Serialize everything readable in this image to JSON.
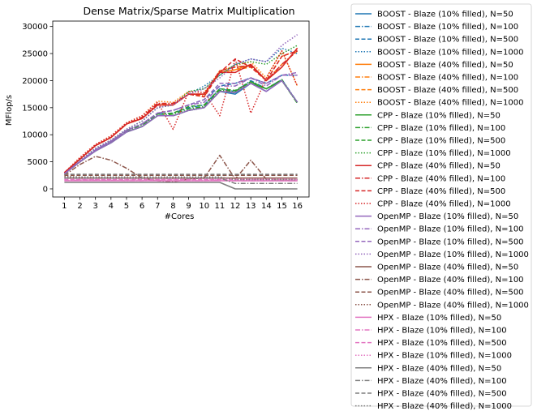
{
  "chart_data": {
    "type": "line",
    "title": "Dense Matrix/Sparse Matrix Multiplication",
    "xlabel": "#Cores",
    "ylabel": "MFlop/s",
    "x": [
      1,
      2,
      3,
      4,
      5,
      6,
      7,
      8,
      9,
      10,
      11,
      12,
      13,
      14,
      15,
      16
    ],
    "xlim": [
      0.25,
      16.75
    ],
    "ylim": [
      -1500,
      31000
    ],
    "yticks": [
      0,
      5000,
      10000,
      15000,
      20000,
      25000,
      30000
    ],
    "grid": false,
    "legend_position": "outside-right",
    "series": [
      {
        "name": "BOOST - Blaze (10% filled), N=50",
        "color": "#1f77b4",
        "dash": "solid",
        "values": [
          3000,
          5000,
          7000,
          8500,
          10500,
          11500,
          13500,
          13500,
          14500,
          15000,
          18000,
          17500,
          19500,
          18000,
          20000,
          16000
        ]
      },
      {
        "name": "BOOST - Blaze (10% filled), N=100",
        "color": "#1f77b4",
        "dash": "dashdot",
        "values": [
          2800,
          5000,
          7200,
          8800,
          10800,
          12000,
          13800,
          14000,
          15000,
          15500,
          18500,
          18000,
          20000,
          18500,
          20200,
          16000
        ]
      },
      {
        "name": "BOOST - Blaze (10% filled), N=500",
        "color": "#1f77b4",
        "dash": "dashed",
        "values": [
          2800,
          5000,
          7200,
          8800,
          10800,
          12000,
          14000,
          14500,
          15500,
          16500,
          19000,
          19500,
          20500,
          19500,
          21000,
          21000
        ]
      },
      {
        "name": "BOOST - Blaze (10% filled), N=1000",
        "color": "#1f77b4",
        "dash": "dotted",
        "values": [
          2800,
          5200,
          7500,
          9000,
          11000,
          12500,
          15000,
          15500,
          17500,
          19000,
          21000,
          23000,
          24000,
          23500,
          26000,
          25000
        ]
      },
      {
        "name": "BOOST - Blaze (40% filled), N=50",
        "color": "#ff7f0e",
        "dash": "solid",
        "values": [
          3000,
          5500,
          8000,
          9500,
          12000,
          13000,
          15500,
          15500,
          17500,
          17500,
          21500,
          22000,
          23000,
          20000,
          22500,
          26000
        ]
      },
      {
        "name": "BOOST - Blaze (40% filled), N=100",
        "color": "#ff7f0e",
        "dash": "dashdot",
        "values": [
          3000,
          5500,
          8000,
          9500,
          12000,
          13200,
          15800,
          15500,
          17500,
          17200,
          21800,
          22500,
          22800,
          20000,
          23000,
          25500
        ]
      },
      {
        "name": "BOOST - Blaze (40% filled), N=500",
        "color": "#ff7f0e",
        "dash": "dashed",
        "values": [
          3000,
          5500,
          8000,
          9500,
          12000,
          13000,
          15500,
          15500,
          17500,
          17000,
          21500,
          22000,
          22500,
          20000,
          24500,
          25500
        ]
      },
      {
        "name": "BOOST - Blaze (40% filled), N=1000",
        "color": "#ff7f0e",
        "dash": "dotted",
        "values": [
          3000,
          5800,
          8200,
          9800,
          12200,
          13500,
          16200,
          16000,
          18000,
          17800,
          21800,
          22800,
          23500,
          20500,
          25500,
          19000
        ]
      },
      {
        "name": "CPP - Blaze (10% filled), N=50",
        "color": "#2ca02c",
        "dash": "solid",
        "values": [
          2800,
          5000,
          7000,
          8500,
          10500,
          11500,
          13500,
          13500,
          14500,
          15000,
          18000,
          17800,
          19500,
          18500,
          20000,
          16000
        ]
      },
      {
        "name": "CPP - Blaze (10% filled), N=100",
        "color": "#2ca02c",
        "dash": "dashdot",
        "values": [
          2800,
          5000,
          7000,
          8700,
          10700,
          11800,
          13500,
          13800,
          14800,
          15200,
          18200,
          18000,
          19800,
          18500,
          20000,
          15800
        ]
      },
      {
        "name": "CPP - Blaze (10% filled), N=500",
        "color": "#2ca02c",
        "dash": "dashed",
        "values": [
          2800,
          5000,
          7200,
          8800,
          10800,
          12000,
          13800,
          14000,
          15200,
          15500,
          18500,
          18200,
          19800,
          18500,
          20200,
          15800
        ]
      },
      {
        "name": "CPP - Blaze (10% filled), N=1000",
        "color": "#2ca02c",
        "dash": "dotted",
        "values": [
          2800,
          5200,
          7500,
          9000,
          11000,
          12500,
          15000,
          15500,
          18000,
          18500,
          21000,
          23000,
          23500,
          23000,
          25000,
          26500
        ]
      },
      {
        "name": "CPP - Blaze (40% filled), N=50",
        "color": "#d62728",
        "dash": "solid",
        "values": [
          3000,
          5500,
          8000,
          9500,
          12000,
          13000,
          15500,
          15500,
          17500,
          17500,
          21500,
          21500,
          23000,
          20000,
          22500,
          26000
        ]
      },
      {
        "name": "CPP - Blaze (40% filled), N=100",
        "color": "#d62728",
        "dash": "dashdot",
        "values": [
          3000,
          5500,
          8000,
          9500,
          12000,
          13200,
          15800,
          15800,
          17500,
          17500,
          21800,
          22500,
          22800,
          20000,
          23000,
          25500
        ]
      },
      {
        "name": "CPP - Blaze (40% filled), N=500",
        "color": "#d62728",
        "dash": "dashed",
        "values": [
          3000,
          5500,
          8000,
          9500,
          12000,
          13000,
          15500,
          15500,
          17500,
          17000,
          21500,
          24000,
          22500,
          20000,
          24500,
          25500
        ]
      },
      {
        "name": "CPP - Blaze (40% filled), N=1000",
        "color": "#d62728",
        "dash": "dotted",
        "values": [
          3000,
          5800,
          8200,
          9800,
          12200,
          13500,
          16000,
          11000,
          18000,
          17800,
          13500,
          24000,
          14000,
          20500,
          25500,
          19000
        ]
      },
      {
        "name": "OpenMP - Blaze (10% filled), N=50",
        "color": "#9467bd",
        "dash": "solid",
        "values": [
          2800,
          5000,
          7000,
          8500,
          10500,
          11500,
          13500,
          13500,
          14500,
          15000,
          18000,
          17800,
          19500,
          18000,
          20000,
          16000
        ]
      },
      {
        "name": "OpenMP - Blaze (10% filled), N=100",
        "color": "#9467bd",
        "dash": "dashdot",
        "values": [
          2800,
          5000,
          7200,
          8800,
          10800,
          12000,
          14000,
          14500,
          15500,
          16000,
          19000,
          19000,
          20500,
          19000,
          21000,
          21500
        ]
      },
      {
        "name": "OpenMP - Blaze (10% filled), N=500",
        "color": "#9467bd",
        "dash": "dashed",
        "values": [
          2800,
          5000,
          7200,
          8800,
          10800,
          12000,
          14000,
          14500,
          15500,
          16500,
          19500,
          19500,
          20500,
          19500,
          21000,
          21000
        ]
      },
      {
        "name": "OpenMP - Blaze (10% filled), N=1000",
        "color": "#9467bd",
        "dash": "dotted",
        "values": [
          2800,
          5200,
          7500,
          9000,
          11000,
          12500,
          15000,
          15500,
          17500,
          18500,
          20500,
          23000,
          24000,
          23500,
          26500,
          28500
        ]
      },
      {
        "name": "OpenMP - Blaze (40% filled), N=50",
        "color": "#8c564b",
        "dash": "solid",
        "values": [
          2000,
          2000,
          2000,
          2000,
          2000,
          2000,
          2000,
          2000,
          2000,
          2000,
          2000,
          2000,
          2000,
          2000,
          2000,
          2000
        ]
      },
      {
        "name": "OpenMP - Blaze (40% filled), N=100",
        "color": "#8c564b",
        "dash": "dashdot",
        "values": [
          2500,
          4500,
          6000,
          5300,
          3800,
          2000,
          1500,
          1300,
          1800,
          2000,
          6200,
          1800,
          5300,
          1800,
          1600,
          1500
        ]
      },
      {
        "name": "OpenMP - Blaze (40% filled), N=500",
        "color": "#8c564b",
        "dash": "dashed",
        "values": [
          2500,
          2500,
          2500,
          2500,
          2500,
          2500,
          2500,
          2500,
          2500,
          2500,
          2500,
          2500,
          2500,
          2500,
          2500,
          2500
        ]
      },
      {
        "name": "OpenMP - Blaze (40% filled), N=1000",
        "color": "#8c564b",
        "dash": "dotted",
        "values": [
          2300,
          2200,
          2100,
          2000,
          2000,
          1800,
          1900,
          1900,
          1900,
          1900,
          2000,
          1900,
          2000,
          1800,
          1800,
          1700
        ]
      },
      {
        "name": "HPX - Blaze (10% filled), N=50",
        "color": "#e377c2",
        "dash": "solid",
        "values": [
          1500,
          1500,
          1500,
          1500,
          1500,
          1500,
          1500,
          1500,
          1500,
          1500,
          1500,
          1500,
          1500,
          1500,
          1500,
          1500
        ]
      },
      {
        "name": "HPX - Blaze (10% filled), N=100",
        "color": "#e377c2",
        "dash": "dashdot",
        "values": [
          1500,
          1600,
          1600,
          1600,
          1500,
          1500,
          1600,
          1500,
          1500,
          1500,
          1600,
          1500,
          1500,
          1500,
          1500,
          1500
        ]
      },
      {
        "name": "HPX - Blaze (10% filled), N=500",
        "color": "#e377c2",
        "dash": "dashed",
        "values": [
          1700,
          1700,
          1700,
          1700,
          1700,
          1700,
          1700,
          1700,
          1700,
          1700,
          1700,
          1700,
          1700,
          1700,
          1700,
          1700
        ]
      },
      {
        "name": "HPX - Blaze (10% filled), N=1000",
        "color": "#e377c2",
        "dash": "dotted",
        "values": [
          1800,
          1800,
          1800,
          1800,
          1800,
          1800,
          1800,
          1800,
          1800,
          1800,
          1800,
          1800,
          1800,
          1800,
          1800,
          1800
        ]
      },
      {
        "name": "HPX - Blaze (40% filled), N=50",
        "color": "#7f7f7f",
        "dash": "solid",
        "values": [
          1200,
          1200,
          1200,
          1200,
          1200,
          1200,
          1200,
          1200,
          1200,
          1200,
          1200,
          0,
          0,
          0,
          0,
          0
        ]
      },
      {
        "name": "HPX - Blaze (40% filled), N=100",
        "color": "#7f7f7f",
        "dash": "dashdot",
        "values": [
          2000,
          2000,
          2000,
          2000,
          2000,
          2000,
          2000,
          2000,
          2000,
          2000,
          2000,
          1000,
          1000,
          1000,
          1000,
          1000
        ]
      },
      {
        "name": "HPX - Blaze (40% filled), N=500",
        "color": "#7f7f7f",
        "dash": "dashed",
        "values": [
          2700,
          2700,
          2700,
          2700,
          2700,
          2700,
          2700,
          2700,
          2700,
          2700,
          2700,
          2700,
          2700,
          2700,
          2700,
          2700
        ]
      },
      {
        "name": "HPX - Blaze (40% filled), N=1000",
        "color": "#7f7f7f",
        "dash": "dotted",
        "values": [
          2200,
          2200,
          2200,
          2200,
          2200,
          2200,
          2200,
          2200,
          2200,
          2200,
          2200,
          1700,
          1700,
          1700,
          1700,
          1700
        ]
      }
    ]
  }
}
